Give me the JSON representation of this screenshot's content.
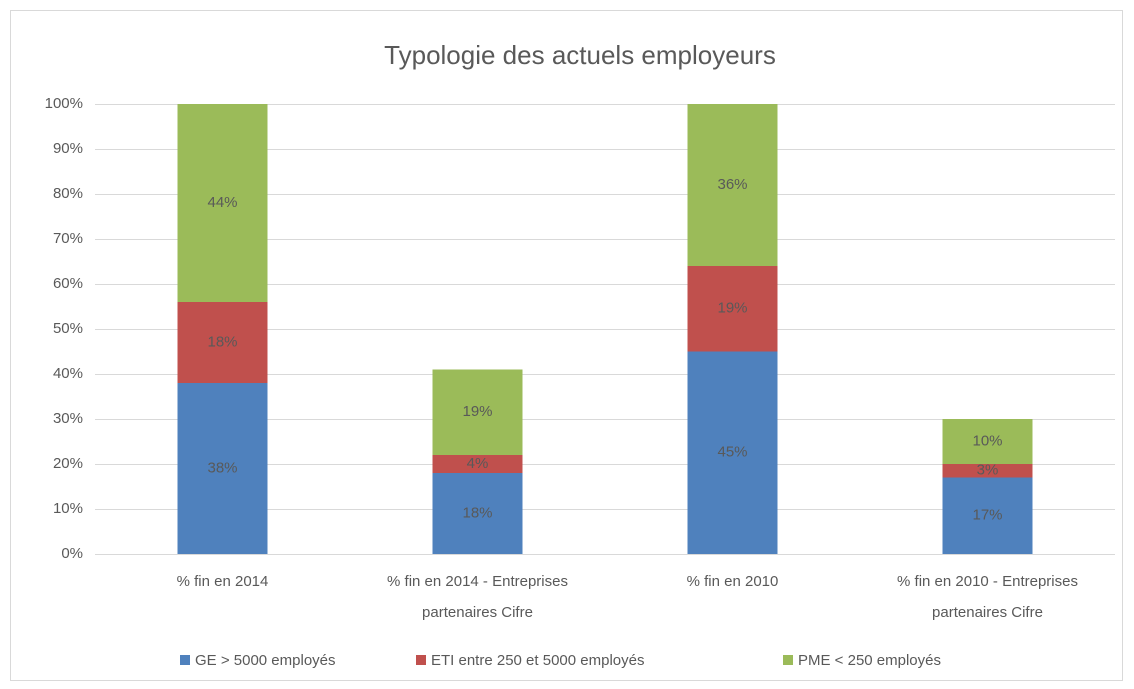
{
  "chart_data": {
    "type": "stacked_bar",
    "title": "Typologie des actuels employeurs",
    "categories": [
      "% fin en 2014",
      "% fin en 2014 - Entreprises partenaires Cifre",
      "% fin en 2010",
      "% fin en 2010 - Entreprises partenaires Cifre"
    ],
    "series": [
      {
        "name": "GE > 5000 employés",
        "color": "#4f81bd",
        "values": [
          38,
          18,
          45,
          17
        ],
        "value_labels": [
          "38%",
          "18%",
          "45%",
          "17%"
        ]
      },
      {
        "name": "ETI entre 250 et 5000 employés",
        "color": "#c0504d",
        "values": [
          18,
          4,
          19,
          3
        ],
        "value_labels": [
          "18%",
          "4%",
          "19%",
          "3%"
        ]
      },
      {
        "name": "PME < 250 employés",
        "color": "#9bbb59",
        "values": [
          44,
          19,
          36,
          10
        ],
        "value_labels": [
          "44%",
          "19%",
          "36%",
          "10%"
        ]
      }
    ],
    "ylim": [
      0,
      100
    ],
    "yticks": [
      {
        "value": 0,
        "label": "0%"
      },
      {
        "value": 10,
        "label": "10%"
      },
      {
        "value": 20,
        "label": "20%"
      },
      {
        "value": 30,
        "label": "30%"
      },
      {
        "value": 40,
        "label": "40%"
      },
      {
        "value": 50,
        "label": "50%"
      },
      {
        "value": 60,
        "label": "60%"
      },
      {
        "value": 70,
        "label": "70%"
      },
      {
        "value": 80,
        "label": "80%"
      },
      {
        "value": 90,
        "label": "90%"
      },
      {
        "value": 100,
        "label": "100%"
      }
    ],
    "grid": true,
    "legend": "bottom"
  }
}
